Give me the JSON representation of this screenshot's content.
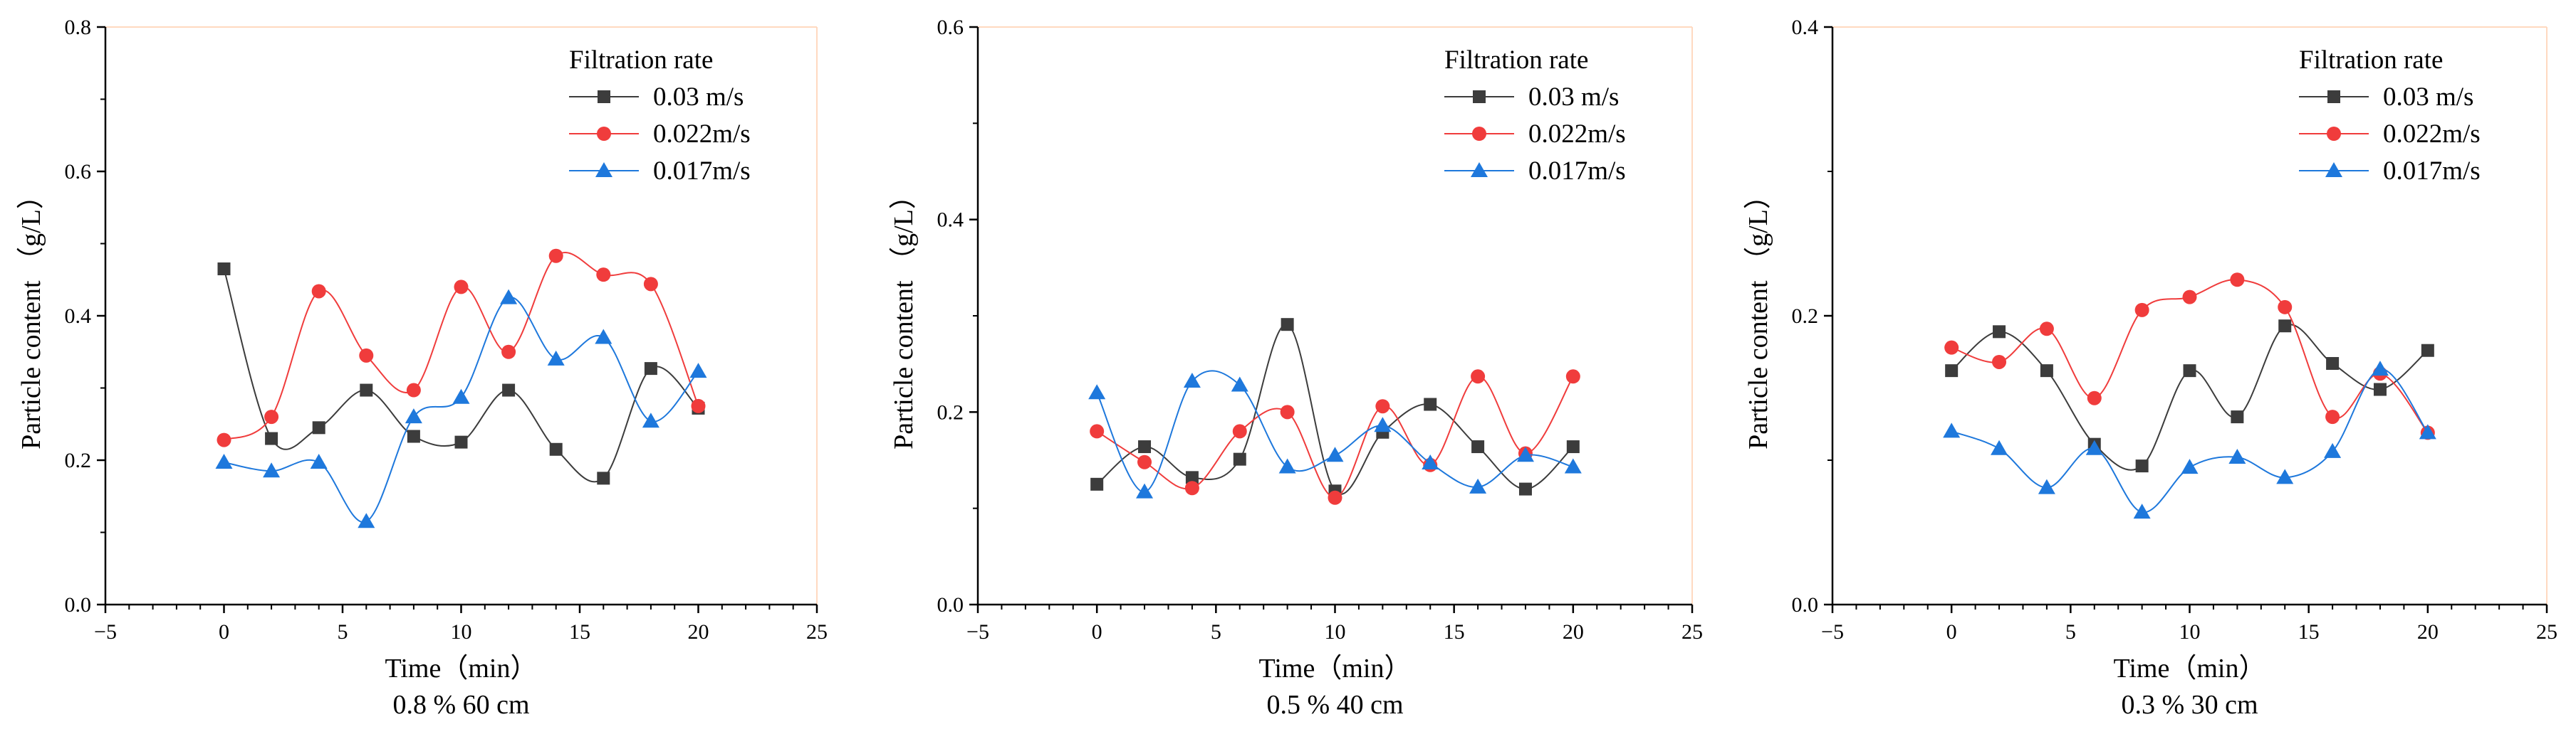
{
  "legend": {
    "title": "Filtration rate",
    "entries": [
      "0.03 m/s",
      "0.022m/s",
      "0.017m/s"
    ]
  },
  "colors": {
    "series_0": "#3c3c3c",
    "series_1": "#f03c3c",
    "series_2": "#1e78dc",
    "frame": "#ffd9c0",
    "axis": "#000000"
  },
  "markers": [
    "square",
    "circle",
    "triangle"
  ],
  "chart_data": [
    {
      "type": "line",
      "title": "",
      "caption": "0.8 %   60 cm",
      "xlabel": "Time（min）",
      "ylabel": "Particle content （g/L）",
      "xlim": [
        -5,
        25
      ],
      "ylim": [
        0,
        0.8
      ],
      "xticks": [
        -5,
        0,
        5,
        10,
        15,
        20,
        25
      ],
      "yticks": [
        0.0,
        0.2,
        0.4,
        0.6,
        0.8
      ],
      "ytick_labels": [
        "0.0",
        "0.2",
        "0.4",
        "0.6",
        "0.8"
      ],
      "xtick_labels": [
        "−5",
        "0",
        "5",
        "10",
        "15",
        "20",
        "25"
      ],
      "x": [
        0,
        2,
        4,
        6,
        8,
        10,
        12,
        14,
        16,
        18,
        20
      ],
      "series": [
        {
          "name": "0.03 m/s",
          "values": [
            0.465,
            0.23,
            0.245,
            0.297,
            0.233,
            0.225,
            0.297,
            0.215,
            0.175,
            0.327,
            0.272
          ]
        },
        {
          "name": "0.022m/s",
          "values": [
            0.228,
            0.26,
            0.434,
            0.345,
            0.297,
            0.44,
            0.35,
            0.483,
            0.457,
            0.444,
            0.275
          ]
        },
        {
          "name": "0.017m/s",
          "values": [
            0.197,
            0.185,
            0.197,
            0.115,
            0.26,
            0.287,
            0.425,
            0.34,
            0.37,
            0.254,
            0.323
          ]
        }
      ],
      "legend_position": "top-right",
      "grid": false
    },
    {
      "type": "line",
      "title": "",
      "caption": "0.5 %   40 cm",
      "xlabel": "Time（min）",
      "ylabel": "Particle content （g/L）",
      "xlim": [
        -5,
        25
      ],
      "ylim": [
        0,
        0.6
      ],
      "xticks": [
        -5,
        0,
        5,
        10,
        15,
        20,
        25
      ],
      "yticks": [
        0.0,
        0.2,
        0.4,
        0.6
      ],
      "ytick_labels": [
        "0.0",
        "0.2",
        "0.4",
        "0.6"
      ],
      "xtick_labels": [
        "−5",
        "0",
        "5",
        "10",
        "15",
        "20",
        "25"
      ],
      "x": [
        0,
        2,
        4,
        6,
        8,
        10,
        12,
        14,
        16,
        18,
        20
      ],
      "series": [
        {
          "name": "0.03 m/s",
          "values": [
            0.125,
            0.164,
            0.132,
            0.151,
            0.291,
            0.118,
            0.179,
            0.208,
            0.164,
            0.12,
            0.164
          ]
        },
        {
          "name": "0.022m/s",
          "values": [
            0.18,
            0.148,
            0.121,
            0.18,
            0.2,
            0.111,
            0.206,
            0.145,
            0.237,
            0.157,
            0.237
          ]
        },
        {
          "name": "0.017m/s",
          "values": [
            0.22,
            0.117,
            0.232,
            0.228,
            0.143,
            0.155,
            0.186,
            0.147,
            0.122,
            0.155,
            0.143
          ]
        }
      ],
      "legend_position": "top-right",
      "grid": false
    },
    {
      "type": "line",
      "title": "",
      "caption": "0.3 %   30 cm",
      "xlabel": "Time（min）",
      "ylabel": "Particle content （g/L）",
      "xlim": [
        -5,
        25
      ],
      "ylim": [
        0,
        0.4
      ],
      "xticks": [
        -5,
        0,
        5,
        10,
        15,
        20,
        25
      ],
      "yticks": [
        0.0,
        0.2,
        0.4
      ],
      "ytick_labels": [
        "0.0",
        "0.2",
        "0.4"
      ],
      "xtick_labels": [
        "−5",
        "0",
        "5",
        "10",
        "15",
        "20",
        "25"
      ],
      "x": [
        0,
        2,
        4,
        6,
        8,
        10,
        12,
        14,
        16,
        18,
        20
      ],
      "series": [
        {
          "name": "0.03 m/s",
          "values": [
            0.162,
            0.189,
            0.162,
            0.111,
            0.096,
            0.162,
            0.13,
            0.193,
            0.167,
            0.149,
            0.176
          ]
        },
        {
          "name": "0.022m/s",
          "values": [
            0.178,
            0.168,
            0.191,
            0.143,
            0.204,
            0.213,
            0.225,
            0.206,
            0.13,
            0.16,
            0.119
          ]
        },
        {
          "name": "0.017m/s",
          "values": [
            0.12,
            0.108,
            0.081,
            0.108,
            0.064,
            0.095,
            0.102,
            0.088,
            0.106,
            0.163,
            0.119
          ]
        }
      ],
      "legend_position": "top-right",
      "grid": false
    }
  ]
}
